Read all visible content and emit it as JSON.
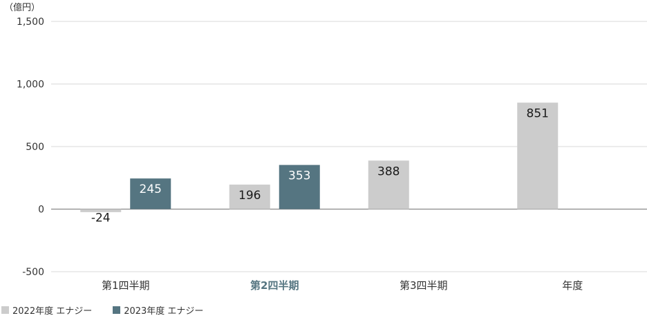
{
  "chart_data": {
    "type": "bar",
    "unit_label": "（億円）",
    "categories": [
      "第1四半期",
      "第2四半期",
      "第3四半期",
      "年度"
    ],
    "highlight_category": "第2四半期",
    "series": [
      {
        "name": "2022年度 エナジー",
        "values": [
          -24,
          196,
          388,
          851
        ],
        "color": "#cccccc"
      },
      {
        "name": "2023年度 エナジー",
        "values": [
          245,
          353,
          null,
          null
        ],
        "color": "#557581"
      }
    ],
    "yticks": [
      "1,500",
      "1,000",
      "500",
      "0",
      "-500"
    ],
    "ytick_values": [
      1500,
      1000,
      500,
      0,
      -500
    ],
    "ylim": [
      -500,
      1500
    ],
    "grid": true,
    "legend_position": "bottom-left",
    "colors": {
      "grid": "#d9d9d9",
      "axis": "#888888",
      "text": "#333333",
      "highlight_text": "#557581"
    }
  }
}
